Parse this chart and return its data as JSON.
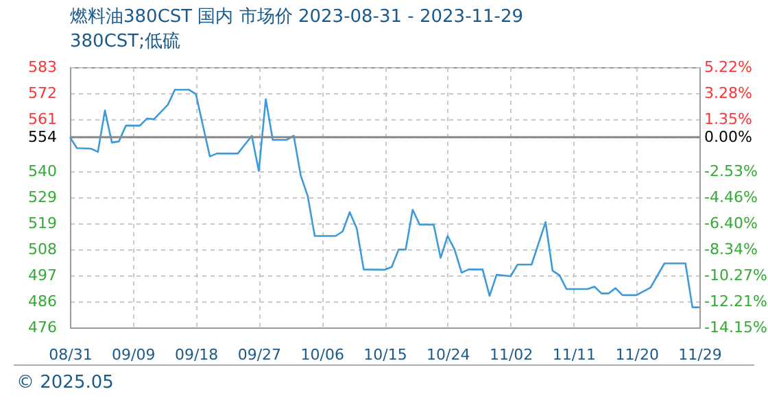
{
  "chart_data": {
    "type": "line",
    "title": "燃料油380CST 国内 市场价 2023-08-31 - 2023-11-29",
    "subtitle": "380CST;低硫",
    "x": [
      "2023-08-31",
      "2023-09-01",
      "2023-09-03",
      "2023-09-04",
      "2023-09-05",
      "2023-09-06",
      "2023-09-07",
      "2023-09-08",
      "2023-09-10",
      "2023-09-11",
      "2023-09-12",
      "2023-09-14",
      "2023-09-15",
      "2023-09-17",
      "2023-09-18",
      "2023-09-20",
      "2023-09-21",
      "2023-09-24",
      "2023-09-26",
      "2023-09-27",
      "2023-09-28",
      "2023-09-29",
      "2023-10-01",
      "2023-10-02",
      "2023-10-03",
      "2023-10-04",
      "2023-10-05",
      "2023-10-08",
      "2023-10-09",
      "2023-10-10",
      "2023-10-11",
      "2023-10-12",
      "2023-10-15",
      "2023-10-16",
      "2023-10-17",
      "2023-10-18",
      "2023-10-19",
      "2023-10-20",
      "2023-10-22",
      "2023-10-23",
      "2023-10-24",
      "2023-10-25",
      "2023-10-26",
      "2023-10-27",
      "2023-10-29",
      "2023-10-30",
      "2023-10-31",
      "2023-11-02",
      "2023-11-03",
      "2023-11-05",
      "2023-11-07",
      "2023-11-08",
      "2023-11-09",
      "2023-11-10",
      "2023-11-13",
      "2023-11-14",
      "2023-11-15",
      "2023-11-16",
      "2023-11-17",
      "2023-11-18",
      "2023-11-20",
      "2023-11-22",
      "2023-11-24",
      "2023-11-27",
      "2023-11-28",
      "2023-11-29"
    ],
    "series": [
      {
        "color": "#3c9ad8",
        "values": [
          554,
          549.5,
          549.3,
          548,
          565,
          551.8,
          552.3,
          558.8,
          558.8,
          561.7,
          561.4,
          567.4,
          573.6,
          573.6,
          571.8,
          546.1,
          547.3,
          547.3,
          554.6,
          540.1,
          569.7,
          552.9,
          552.9,
          554.6,
          538.2,
          529.7,
          513.3,
          513.3,
          515.2,
          523.1,
          516.5,
          499.5,
          499.4,
          500.5,
          507.7,
          507.7,
          524.1,
          518,
          518,
          504.3,
          513.3,
          507.7,
          498.2,
          499.5,
          499.5,
          488.6,
          497.3,
          496.7,
          501.5,
          501.5,
          519,
          499,
          497.1,
          491.4,
          491.4,
          492.4,
          489.6,
          489.6,
          491.8,
          488.9,
          488.9,
          492,
          502,
          502,
          483.9,
          483.9
        ]
      }
    ],
    "xlim": [
      "2023-08-31",
      "2023-11-29"
    ],
    "xticks": [
      {
        "value": "2023-08-31",
        "label": "08/31"
      },
      {
        "value": "2023-09-09",
        "label": "09/09"
      },
      {
        "value": "2023-09-18",
        "label": "09/18"
      },
      {
        "value": "2023-09-27",
        "label": "09/27"
      },
      {
        "value": "2023-10-06",
        "label": "10/06"
      },
      {
        "value": "2023-10-15",
        "label": "10/15"
      },
      {
        "value": "2023-10-24",
        "label": "10/24"
      },
      {
        "value": "2023-11-02",
        "label": "11/02"
      },
      {
        "value": "2023-11-11",
        "label": "11/11"
      },
      {
        "value": "2023-11-20",
        "label": "11/20"
      },
      {
        "value": "2023-11-29",
        "label": "11/29"
      }
    ],
    "ylim": [
      475.6,
      582.9
    ],
    "yticks": [
      {
        "value": 582.9,
        "label": "583"
      },
      {
        "value": 572.2,
        "label": "572"
      },
      {
        "value": 561.5,
        "label": "561"
      },
      {
        "value": 554,
        "label": "554"
      },
      {
        "value": 540,
        "label": "540"
      },
      {
        "value": 529.3,
        "label": "529"
      },
      {
        "value": 518.5,
        "label": "519"
      },
      {
        "value": 507.8,
        "label": "508"
      },
      {
        "value": 497.1,
        "label": "497"
      },
      {
        "value": 486.4,
        "label": "486"
      },
      {
        "value": 475.6,
        "label": "476"
      }
    ],
    "y2lim": [
      -14.15,
      5.22
    ],
    "y2ticks": [
      {
        "value": 5.22,
        "label": "5.22%"
      },
      {
        "value": 3.28,
        "label": "3.28%"
      },
      {
        "value": 1.35,
        "label": "1.35%"
      },
      {
        "value": 0,
        "label": "0.00%"
      },
      {
        "value": -2.53,
        "label": "-2.53%"
      },
      {
        "value": -4.46,
        "label": "-4.46%"
      },
      {
        "value": -6.4,
        "label": "-6.40%"
      },
      {
        "value": -8.34,
        "label": "-8.34%"
      },
      {
        "value": -10.27,
        "label": "-10.27%"
      },
      {
        "value": -12.21,
        "label": "-12.21%"
      },
      {
        "value": -14.15,
        "label": "-14.15%"
      }
    ],
    "ref_lines": [
      {
        "axis": "y",
        "value": 554,
        "color": "#888888"
      }
    ],
    "grid": true,
    "annotations": [
      "© 2025.05"
    ]
  }
}
